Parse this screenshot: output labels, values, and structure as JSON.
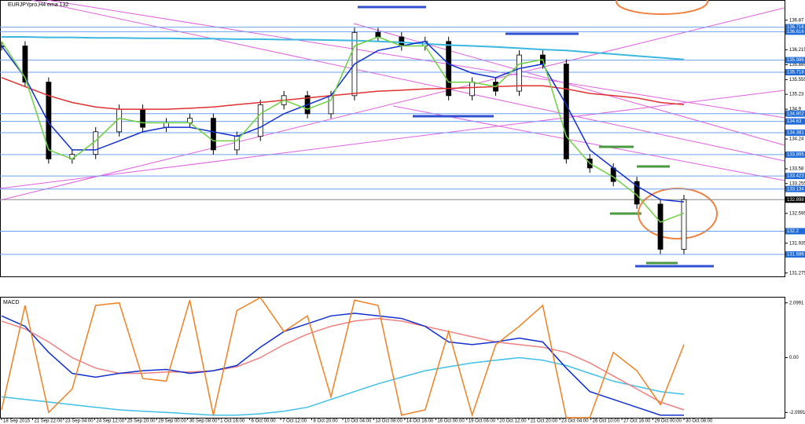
{
  "chart_data": [
    {
      "type": "candlestick",
      "title": "EURJPYpro,H4",
      "subtitle": "ema 132",
      "ylim": [
        131.2,
        137.3
      ],
      "yticks": [
        136.87,
        136.215,
        135.885,
        135.555,
        135.23,
        134.9,
        134.24,
        133.58,
        133.255,
        132.595,
        131.935,
        131.275
      ],
      "price_levels": [
        136.716,
        136.616,
        135.986,
        135.718,
        134.802,
        134.63,
        134.381,
        133.895,
        133.423,
        133.134,
        132.898,
        132.2,
        131.686
      ],
      "close": [
        136.3,
        135.5,
        133.8,
        133.9,
        134.4,
        134.9,
        134.5,
        134.6,
        134.7,
        134.0,
        134.3,
        135.0,
        135.2,
        134.8,
        135.2,
        136.6,
        136.5,
        136.3,
        136.4,
        135.2,
        135.5,
        135.3,
        136.1,
        135.9,
        133.8,
        133.6,
        133.3,
        132.8,
        131.8,
        132.9
      ],
      "series": [
        {
          "name": "ema 132",
          "color": "#e03030",
          "values": [
            135.6,
            135.4,
            135.2,
            135.05,
            134.95,
            134.9,
            134.9,
            134.9,
            134.92,
            134.95,
            135.0,
            135.05,
            135.1,
            135.15,
            135.2,
            135.25,
            135.3,
            135.32,
            135.35,
            135.36,
            135.38,
            135.4,
            135.42,
            135.42,
            135.35,
            135.25,
            135.2,
            135.15,
            135.05,
            135.0
          ]
        },
        {
          "name": "cyan",
          "color": "#3cb8e0",
          "values": [
            136.5,
            136.5,
            136.49,
            136.49,
            136.48,
            136.48,
            136.47,
            136.47,
            136.46,
            136.46,
            136.45,
            136.45,
            136.44,
            136.44,
            136.43,
            136.42,
            136.4,
            136.38,
            136.35,
            136.32,
            136.3,
            136.28,
            136.25,
            136.22,
            136.2,
            136.16,
            136.12,
            136.08,
            136.04,
            136.0
          ]
        },
        {
          "name": "blue",
          "color": "#1030d0",
          "values": [
            136.3,
            135.6,
            134.6,
            134.0,
            134.0,
            134.2,
            134.4,
            134.5,
            134.5,
            134.4,
            134.3,
            134.5,
            134.8,
            135.0,
            135.2,
            135.9,
            136.2,
            136.3,
            136.4,
            135.9,
            135.7,
            135.6,
            135.8,
            135.9,
            135.0,
            134.0,
            133.6,
            133.2,
            132.9,
            132.85
          ]
        },
        {
          "name": "green",
          "color": "#6cd040",
          "values": [
            136.4,
            135.6,
            134.0,
            133.8,
            134.2,
            134.7,
            134.6,
            134.6,
            134.6,
            134.2,
            134.2,
            134.8,
            135.1,
            134.9,
            135.1,
            136.3,
            136.5,
            136.3,
            136.3,
            135.5,
            135.5,
            135.4,
            135.9,
            136.0,
            134.3,
            133.7,
            133.4,
            133.0,
            132.4,
            132.6
          ]
        }
      ]
    },
    {
      "type": "line",
      "title": "MACD",
      "ylim": [
        -2.3,
        2.3
      ],
      "yticks": [
        2.0991,
        {
          "value": 0,
          "label": "0.00"
        },
        -2.0991
      ],
      "x_tick_labels": [
        "18 Sep 2015",
        "21 Sep 22:00",
        "23 Sep 04:00",
        "24 Sep 12:00",
        "25 Sep 20:00",
        "29 Sep 00:00",
        "30 Sep 08:00",
        "1 Oct 16:00",
        "6 Oct 00:00",
        "7 Oct 12:00",
        "8 Oct 20:00",
        "10 Oct 04:00",
        "13 Oct 08:00",
        "14 Oct 16:00",
        "16 Oct 00:00",
        "19 Oct 06:00",
        "20 Oct 12:00",
        "21 Oct 20:00",
        "23 Oct 04:00",
        "26 Oct 10:00",
        "27 Oct 16:00",
        "29 Oct 00:00",
        "30 Oct 08:00"
      ],
      "series": [
        {
          "name": "cyan",
          "color": "#40c0e8",
          "values": [
            -1.5,
            -1.6,
            -1.7,
            -1.8,
            -1.9,
            -2.0,
            -2.05,
            -2.1,
            -2.15,
            -2.2,
            -2.2,
            -2.15,
            -2.05,
            -1.9,
            -1.6,
            -1.3,
            -1.0,
            -0.75,
            -0.5,
            -0.35,
            -0.2,
            -0.1,
            0.0,
            -0.1,
            -0.3,
            -0.6,
            -0.9,
            -1.1,
            -1.3,
            -1.4
          ]
        },
        {
          "name": "pink",
          "color": "#f08080",
          "values": [
            1.4,
            1.1,
            0.6,
            0.0,
            -0.4,
            -0.6,
            -0.6,
            -0.55,
            -0.55,
            -0.5,
            -0.35,
            0.0,
            0.5,
            0.9,
            1.2,
            1.4,
            1.5,
            1.4,
            1.2,
            1.0,
            0.8,
            0.6,
            0.5,
            0.4,
            0.2,
            -0.2,
            -0.7,
            -1.2,
            -1.7,
            -2.0
          ]
        },
        {
          "name": "blue",
          "color": "#1030d0",
          "values": [
            1.6,
            1.2,
            0.2,
            -0.6,
            -0.75,
            -0.6,
            -0.5,
            -0.45,
            -0.6,
            -0.5,
            -0.3,
            0.4,
            1.0,
            1.3,
            1.6,
            1.7,
            1.6,
            1.5,
            1.2,
            0.6,
            0.5,
            0.6,
            0.75,
            0.6,
            -0.4,
            -1.3,
            -1.6,
            -1.9,
            -2.2,
            -2.2
          ]
        },
        {
          "name": "orange",
          "color": "#f08020",
          "values": [
            -2.0,
            2.0,
            -2.1,
            -1.2,
            2.0,
            2.1,
            -0.8,
            -0.9,
            2.2,
            -2.2,
            1.8,
            2.3,
            1.0,
            1.6,
            -1.5,
            2.2,
            2.0,
            -2.2,
            -2.0,
            1.0,
            -2.2,
            0.5,
            1.2,
            2.0,
            -2.3,
            -2.3,
            0.2,
            -0.5,
            -1.8,
            0.5
          ]
        }
      ]
    }
  ]
}
